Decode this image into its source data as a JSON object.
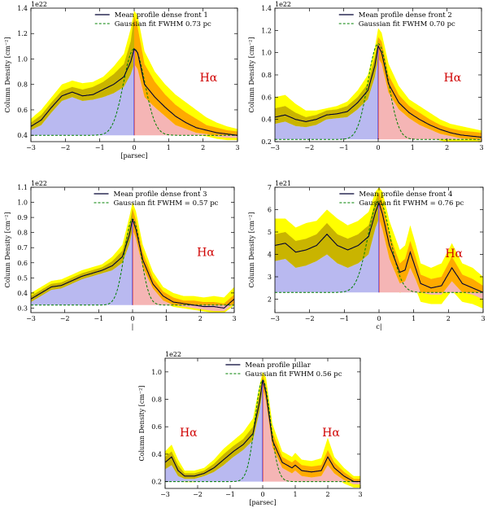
{
  "colors": {
    "outer_band": "#ffff00",
    "inner_band": "#c9b400",
    "inner_band_right": "#ffaa00",
    "left_fill": "#b9b9f0",
    "right_fill": "#f5b5b5",
    "mean_line": "#000033",
    "fit_line": "#008000",
    "center_line_left": "#7a6adc",
    "center_line_right": "#e07070",
    "halpha": "#d00000"
  },
  "chart_data": [
    {
      "type": "area",
      "scale_label": "1e22",
      "xlabel": "[parsec]",
      "ylabel": "Column Density [cm⁻²]",
      "xlim": [
        -3,
        3
      ],
      "ylim": [
        0.35,
        1.4
      ],
      "xticks": [
        "−3",
        "−2",
        "−1",
        "0",
        "1",
        "2",
        "3"
      ],
      "yticks": [
        0.4,
        0.6,
        0.8,
        1.0,
        1.2,
        1.4
      ],
      "ytick_labels": [
        "0.4",
        "0.6",
        "0.8",
        "1.0",
        "1.2",
        "1.4"
      ],
      "legend": [
        "Mean profile dense front 1",
        "Gaussian fit FWHM    0.73 pc"
      ],
      "annotation": "Hα",
      "annotation_pos": "right",
      "fit": {
        "base": 0.4,
        "amp": 0.68,
        "fwhm": 0.73
      },
      "x": [
        -3.0,
        -2.7,
        -2.4,
        -2.1,
        -1.8,
        -1.5,
        -1.2,
        -0.9,
        -0.6,
        -0.3,
        -0.1,
        0.0,
        0.1,
        0.3,
        0.6,
        0.9,
        1.2,
        1.5,
        1.8,
        2.1,
        2.4,
        2.7,
        3.0
      ],
      "mean": [
        0.47,
        0.52,
        0.62,
        0.71,
        0.74,
        0.71,
        0.72,
        0.76,
        0.8,
        0.86,
        0.98,
        1.08,
        1.05,
        0.8,
        0.7,
        0.62,
        0.55,
        0.5,
        0.46,
        0.44,
        0.42,
        0.41,
        0.4
      ],
      "upper": [
        0.5,
        0.56,
        0.66,
        0.75,
        0.78,
        0.76,
        0.78,
        0.82,
        0.88,
        0.96,
        1.14,
        1.34,
        1.25,
        0.96,
        0.82,
        0.72,
        0.64,
        0.58,
        0.53,
        0.48,
        0.46,
        0.44,
        0.43
      ],
      "lower": [
        0.44,
        0.48,
        0.58,
        0.67,
        0.7,
        0.67,
        0.68,
        0.7,
        0.73,
        0.78,
        0.88,
        0.96,
        0.92,
        0.7,
        0.62,
        0.55,
        0.48,
        0.45,
        0.42,
        0.41,
        0.39,
        0.38,
        0.38
      ],
      "upper_outer": [
        0.53,
        0.6,
        0.7,
        0.8,
        0.83,
        0.81,
        0.82,
        0.86,
        0.94,
        1.04,
        1.24,
        1.38,
        1.34,
        1.06,
        0.9,
        0.8,
        0.72,
        0.66,
        0.6,
        0.54,
        0.5,
        0.47,
        0.45
      ]
    },
    {
      "type": "area",
      "scale_label": "1e22",
      "xlabel": "",
      "ylabel": "Column Density [cm⁻²]",
      "xlim": [
        -3,
        3
      ],
      "ylim": [
        0.2,
        1.4
      ],
      "xticks": [
        "−3",
        "−2",
        "−1",
        "0",
        "1",
        "2",
        "3"
      ],
      "yticks": [
        0.2,
        0.4,
        0.6,
        0.8,
        1.0,
        1.2,
        1.4
      ],
      "ytick_labels": [
        "0.2",
        "0.4",
        "0.6",
        "0.8",
        "1.0",
        "1.2",
        "1.4"
      ],
      "legend": [
        "Mean profile dense front 2",
        "Gaussian fit FWHM    0.70 pc"
      ],
      "annotation": "Hα",
      "annotation_pos": "right",
      "fit": {
        "base": 0.22,
        "amp": 0.86,
        "fwhm": 0.7
      },
      "x": [
        -3.0,
        -2.7,
        -2.4,
        -2.1,
        -1.8,
        -1.5,
        -1.2,
        -0.9,
        -0.6,
        -0.3,
        -0.1,
        0.0,
        0.1,
        0.3,
        0.6,
        0.9,
        1.2,
        1.5,
        1.8,
        2.1,
        2.4,
        2.7,
        3.0
      ],
      "mean": [
        0.42,
        0.44,
        0.4,
        0.38,
        0.4,
        0.44,
        0.45,
        0.47,
        0.55,
        0.66,
        0.88,
        1.06,
        1.0,
        0.72,
        0.55,
        0.46,
        0.4,
        0.35,
        0.31,
        0.28,
        0.26,
        0.25,
        0.24
      ],
      "upper": [
        0.5,
        0.52,
        0.46,
        0.42,
        0.44,
        0.48,
        0.49,
        0.52,
        0.6,
        0.72,
        0.96,
        1.14,
        1.1,
        0.8,
        0.62,
        0.52,
        0.46,
        0.4,
        0.35,
        0.32,
        0.3,
        0.29,
        0.28
      ],
      "lower": [
        0.36,
        0.38,
        0.34,
        0.33,
        0.35,
        0.4,
        0.41,
        0.42,
        0.49,
        0.58,
        0.78,
        0.95,
        0.9,
        0.64,
        0.49,
        0.41,
        0.35,
        0.31,
        0.27,
        0.25,
        0.23,
        0.22,
        0.21
      ],
      "upper_outer": [
        0.6,
        0.62,
        0.54,
        0.48,
        0.48,
        0.5,
        0.52,
        0.56,
        0.66,
        0.8,
        1.04,
        1.22,
        1.18,
        0.9,
        0.7,
        0.58,
        0.52,
        0.46,
        0.4,
        0.36,
        0.34,
        0.32,
        0.3
      ]
    },
    {
      "type": "area",
      "scale_label": "1e22",
      "xlabel": "|",
      "ylabel": "Column Density [cm⁻²]",
      "xlim": [
        -3,
        3
      ],
      "ylim": [
        0.27,
        1.1
      ],
      "xticks": [
        "−3",
        "−2",
        "−1",
        "0",
        "1",
        "2",
        "3"
      ],
      "yticks": [
        0.3,
        0.4,
        0.5,
        0.6,
        0.7,
        0.8,
        0.9,
        1.0,
        1.1
      ],
      "ytick_labels": [
        "0.3",
        "0.4",
        "0.5",
        "0.6",
        "0.7",
        "0.8",
        "0.9",
        "1.0",
        "1.1"
      ],
      "legend": [
        "Mean profile dense front 3",
        "Gaussian fit FWHM = 0.57 pc"
      ],
      "annotation": "Hα",
      "annotation_pos": "right",
      "fit": {
        "base": 0.32,
        "amp": 0.57,
        "fwhm": 0.57
      },
      "x": [
        -3.0,
        -2.7,
        -2.4,
        -2.1,
        -1.8,
        -1.5,
        -1.2,
        -0.9,
        -0.6,
        -0.3,
        -0.1,
        0.0,
        0.1,
        0.3,
        0.6,
        0.9,
        1.2,
        1.5,
        1.8,
        2.1,
        2.4,
        2.7,
        3.0
      ],
      "mean": [
        0.36,
        0.4,
        0.44,
        0.45,
        0.48,
        0.51,
        0.53,
        0.55,
        0.58,
        0.64,
        0.78,
        0.89,
        0.82,
        0.62,
        0.46,
        0.38,
        0.34,
        0.33,
        0.32,
        0.31,
        0.31,
        0.3,
        0.36
      ],
      "upper": [
        0.38,
        0.42,
        0.46,
        0.47,
        0.5,
        0.53,
        0.55,
        0.57,
        0.61,
        0.68,
        0.84,
        0.96,
        0.88,
        0.67,
        0.5,
        0.41,
        0.37,
        0.35,
        0.35,
        0.34,
        0.34,
        0.33,
        0.39
      ],
      "lower": [
        0.34,
        0.38,
        0.42,
        0.43,
        0.46,
        0.49,
        0.51,
        0.53,
        0.55,
        0.6,
        0.72,
        0.82,
        0.76,
        0.57,
        0.43,
        0.35,
        0.32,
        0.31,
        0.3,
        0.29,
        0.28,
        0.28,
        0.33
      ],
      "upper_outer": [
        0.4,
        0.44,
        0.48,
        0.49,
        0.52,
        0.55,
        0.57,
        0.59,
        0.64,
        0.72,
        0.9,
        1.0,
        0.94,
        0.72,
        0.54,
        0.44,
        0.4,
        0.38,
        0.38,
        0.37,
        0.38,
        0.37,
        0.44
      ]
    },
    {
      "type": "area",
      "scale_label": "1e21",
      "xlabel": "c|",
      "ylabel": "Column Density [cm⁻²]",
      "xlim": [
        -3,
        3
      ],
      "ylim": [
        1.4,
        7
      ],
      "xticks": [
        "−3",
        "−2",
        "−1",
        "0",
        "1",
        "2",
        "3"
      ],
      "yticks": [
        2,
        3,
        4,
        5,
        6,
        7
      ],
      "ytick_labels": [
        "2",
        "3",
        "4",
        "5",
        "6",
        "7"
      ],
      "legend": [
        "Mean profile dense front 4",
        "Gaussian fit FWHM = 0.76 pc"
      ],
      "annotation": "Hα",
      "annotation_pos": "right-high",
      "fit": {
        "base": 2.3,
        "amp": 4.1,
        "fwhm": 0.76
      },
      "x": [
        -3.0,
        -2.7,
        -2.4,
        -2.1,
        -1.8,
        -1.5,
        -1.2,
        -0.9,
        -0.6,
        -0.3,
        -0.1,
        0.0,
        0.1,
        0.3,
        0.6,
        0.75,
        0.9,
        1.05,
        1.2,
        1.5,
        1.8,
        2.1,
        2.4,
        2.7,
        3.0
      ],
      "mean": [
        4.4,
        4.5,
        4.1,
        4.2,
        4.4,
        4.9,
        4.4,
        4.2,
        4.4,
        4.8,
        5.9,
        6.3,
        5.8,
        4.4,
        3.2,
        3.3,
        4.1,
        3.4,
        2.7,
        2.5,
        2.6,
        3.4,
        2.7,
        2.5,
        2.3
      ],
      "upper": [
        4.9,
        5.0,
        4.6,
        4.7,
        4.9,
        5.4,
        4.9,
        4.7,
        4.9,
        5.3,
        6.4,
        6.8,
        6.3,
        4.9,
        3.6,
        3.8,
        4.6,
        3.9,
        3.1,
        2.9,
        3.0,
        3.9,
        3.1,
        2.9,
        2.6
      ],
      "lower": [
        3.7,
        3.8,
        3.4,
        3.5,
        3.7,
        4.0,
        3.6,
        3.4,
        3.6,
        4.0,
        5.2,
        5.6,
        5.1,
        3.8,
        2.7,
        2.8,
        3.4,
        2.9,
        2.3,
        2.2,
        2.2,
        2.8,
        2.3,
        2.2,
        2.0
      ],
      "upper_outer": [
        5.6,
        5.6,
        5.2,
        5.4,
        5.5,
        6.0,
        5.6,
        5.3,
        5.5,
        5.9,
        6.8,
        7.0,
        6.8,
        5.5,
        4.2,
        4.4,
        5.3,
        4.5,
        3.6,
        3.4,
        3.6,
        4.5,
        3.6,
        3.4,
        3.0
      ]
    },
    {
      "type": "area",
      "scale_label": "1e22",
      "xlabel": "[parsec]",
      "ylabel": "Column Density [cm⁻²]",
      "xlim": [
        -3,
        3
      ],
      "ylim": [
        0.15,
        1.1
      ],
      "xticks": [
        "−3",
        "−2",
        "−1",
        "0",
        "1",
        "2",
        "3"
      ],
      "yticks": [
        0.2,
        0.4,
        0.6,
        0.8,
        1.0
      ],
      "ytick_labels": [
        "0.2",
        "0.4",
        "0.6",
        "0.8",
        "1.0"
      ],
      "legend": [
        "Mean profile pillar",
        "Gaussian fit FWHM    0.56 pc"
      ],
      "annotation": "Hα",
      "annotation_pos": "both",
      "fit": {
        "base": 0.2,
        "amp": 0.74,
        "fwhm": 0.56
      },
      "x": [
        -3.0,
        -2.8,
        -2.6,
        -2.4,
        -2.1,
        -1.8,
        -1.5,
        -1.2,
        -0.9,
        -0.6,
        -0.3,
        -0.1,
        0.0,
        0.1,
        0.3,
        0.6,
        0.9,
        1.0,
        1.2,
        1.5,
        1.8,
        2.0,
        2.2,
        2.5,
        2.8,
        3.0
      ],
      "mean": [
        0.34,
        0.38,
        0.28,
        0.24,
        0.24,
        0.26,
        0.3,
        0.36,
        0.42,
        0.47,
        0.55,
        0.78,
        0.94,
        0.85,
        0.5,
        0.34,
        0.3,
        0.32,
        0.28,
        0.27,
        0.28,
        0.38,
        0.3,
        0.24,
        0.2,
        0.2
      ],
      "upper": [
        0.38,
        0.42,
        0.32,
        0.26,
        0.26,
        0.28,
        0.33,
        0.4,
        0.46,
        0.51,
        0.6,
        0.84,
        0.98,
        0.9,
        0.56,
        0.38,
        0.34,
        0.36,
        0.32,
        0.31,
        0.32,
        0.43,
        0.34,
        0.27,
        0.22,
        0.22
      ],
      "lower": [
        0.29,
        0.32,
        0.24,
        0.22,
        0.22,
        0.24,
        0.27,
        0.32,
        0.38,
        0.43,
        0.5,
        0.71,
        0.88,
        0.79,
        0.45,
        0.3,
        0.26,
        0.28,
        0.24,
        0.23,
        0.24,
        0.32,
        0.26,
        0.21,
        0.18,
        0.18
      ],
      "upper_outer": [
        0.42,
        0.47,
        0.36,
        0.28,
        0.28,
        0.3,
        0.36,
        0.44,
        0.5,
        0.56,
        0.66,
        0.9,
        1.0,
        0.96,
        0.62,
        0.42,
        0.38,
        0.41,
        0.36,
        0.35,
        0.37,
        0.52,
        0.38,
        0.3,
        0.24,
        0.24
      ]
    }
  ]
}
